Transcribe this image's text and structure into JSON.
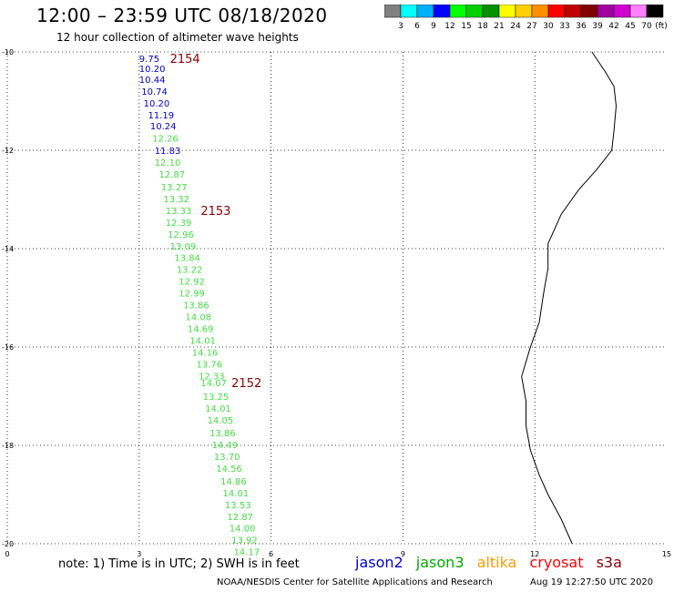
{
  "header": {
    "title": "12:00 – 23:59 UTC 08/18/2020",
    "subtitle": "12 hour collection of altimeter wave heights"
  },
  "colorbar": {
    "swatches": [
      "#808080",
      "#00ffff",
      "#00b0ff",
      "#0000ff",
      "#00ff00",
      "#00d000",
      "#009000",
      "#ffff00",
      "#ffd000",
      "#ff9000",
      "#ff0000",
      "#c00000",
      "#800000",
      "#a000a0",
      "#d000d0",
      "#ff80ff",
      "#000000"
    ],
    "labels": [
      "3",
      "6",
      "9",
      "12",
      "15",
      "18",
      "21",
      "24",
      "27",
      "30",
      "33",
      "36",
      "39",
      "42",
      "45",
      "70"
    ],
    "unit": "(ft)"
  },
  "chart_data": {
    "type": "scatter",
    "xlim": [
      0,
      15
    ],
    "ylim": [
      -20,
      -10
    ],
    "xticks": [
      0,
      3,
      6,
      9,
      12,
      15
    ],
    "yticks": [
      -10,
      -12,
      -14,
      -16,
      -18,
      -20
    ],
    "grid": true,
    "series": [
      {
        "name": "jason2",
        "color": "#0000cc",
        "points": [
          {
            "x": 3.0,
            "y": -10.13,
            "label": "9.75"
          },
          {
            "x": 3.0,
            "y": -10.33,
            "label": "10.20"
          },
          {
            "x": 3.0,
            "y": -10.56,
            "label": "10.44"
          },
          {
            "x": 3.05,
            "y": -10.8,
            "label": "10.74"
          },
          {
            "x": 3.1,
            "y": -11.04,
            "label": "10.20"
          },
          {
            "x": 3.2,
            "y": -11.28,
            "label": "11.19"
          },
          {
            "x": 3.25,
            "y": -11.5,
            "label": "10.24"
          },
          {
            "x": 3.35,
            "y": -12.0,
            "label": "11.83"
          }
        ]
      },
      {
        "name": "jason3",
        "color": "#44dd44",
        "points": [
          {
            "x": 3.3,
            "y": -11.75,
            "label": "12.26"
          },
          {
            "x": 3.35,
            "y": -12.24,
            "label": "12.10"
          },
          {
            "x": 3.45,
            "y": -12.48,
            "label": "12.87"
          },
          {
            "x": 3.5,
            "y": -12.74,
            "label": "13.27"
          },
          {
            "x": 3.55,
            "y": -12.98,
            "label": "13.32"
          },
          {
            "x": 3.6,
            "y": -13.22,
            "label": "13.33"
          },
          {
            "x": 3.6,
            "y": -13.46,
            "label": "12.39"
          },
          {
            "x": 3.65,
            "y": -13.7,
            "label": "12.96"
          },
          {
            "x": 3.7,
            "y": -13.94,
            "label": "13.09"
          },
          {
            "x": 3.8,
            "y": -14.18,
            "label": "13.84"
          },
          {
            "x": 3.85,
            "y": -14.42,
            "label": "13.22"
          },
          {
            "x": 3.9,
            "y": -14.66,
            "label": "12.92"
          },
          {
            "x": 3.9,
            "y": -14.9,
            "label": "12.99"
          },
          {
            "x": 4.0,
            "y": -15.14,
            "label": "13.86"
          },
          {
            "x": 4.05,
            "y": -15.38,
            "label": "14.08"
          },
          {
            "x": 4.1,
            "y": -15.62,
            "label": "14.69"
          },
          {
            "x": 4.15,
            "y": -15.86,
            "label": "14.01"
          },
          {
            "x": 4.2,
            "y": -16.1,
            "label": "14.16"
          },
          {
            "x": 4.3,
            "y": -16.34,
            "label": "13.76"
          },
          {
            "x": 4.35,
            "y": -16.58,
            "label": "12.33"
          },
          {
            "x": 4.4,
            "y": -16.72,
            "label": "14.07"
          },
          {
            "x": 4.45,
            "y": -17.0,
            "label": "13.25"
          },
          {
            "x": 4.5,
            "y": -17.24,
            "label": "14.01"
          },
          {
            "x": 4.55,
            "y": -17.48,
            "label": "14.05"
          },
          {
            "x": 4.6,
            "y": -17.74,
            "label": "13.86"
          },
          {
            "x": 4.65,
            "y": -17.98,
            "label": "14.49"
          },
          {
            "x": 4.7,
            "y": -18.22,
            "label": "13.70"
          },
          {
            "x": 4.75,
            "y": -18.46,
            "label": "14.56"
          },
          {
            "x": 4.85,
            "y": -18.72,
            "label": "14.86"
          },
          {
            "x": 4.9,
            "y": -18.96,
            "label": "14.01"
          },
          {
            "x": 4.95,
            "y": -19.2,
            "label": "13.53"
          },
          {
            "x": 5.0,
            "y": -19.44,
            "label": "12.87"
          },
          {
            "x": 5.05,
            "y": -19.68,
            "label": "14.00"
          },
          {
            "x": 5.1,
            "y": -19.92,
            "label": "13.92"
          },
          {
            "x": 5.15,
            "y": -20.16,
            "label": "14.17"
          }
        ]
      }
    ],
    "annotations": [
      {
        "text": "2154",
        "x": 3.7,
        "y": -10.13,
        "color": "#8b0000"
      },
      {
        "text": "2153",
        "x": 4.4,
        "y": -13.22,
        "color": "#8b0000"
      },
      {
        "text": "2152",
        "x": 5.1,
        "y": -16.72,
        "color": "#8b0000"
      }
    ],
    "coastline": {
      "color": "#000000",
      "points": [
        [
          13.3,
          -10.0
        ],
        [
          13.6,
          -10.4
        ],
        [
          13.8,
          -10.7
        ],
        [
          13.85,
          -11.1
        ],
        [
          13.8,
          -11.6
        ],
        [
          13.75,
          -12.0
        ],
        [
          13.4,
          -12.4
        ],
        [
          13.0,
          -12.8
        ],
        [
          12.6,
          -13.3
        ],
        [
          12.3,
          -13.9
        ],
        [
          12.3,
          -14.4
        ],
        [
          12.2,
          -14.9
        ],
        [
          12.1,
          -15.5
        ],
        [
          11.9,
          -16.0
        ],
        [
          11.8,
          -16.3
        ],
        [
          11.7,
          -16.6
        ],
        [
          11.8,
          -17.1
        ],
        [
          11.8,
          -17.6
        ],
        [
          11.9,
          -18.1
        ],
        [
          12.1,
          -18.6
        ],
        [
          12.3,
          -19.0
        ],
        [
          12.6,
          -19.5
        ],
        [
          12.85,
          -20.0
        ]
      ]
    }
  },
  "footer": {
    "note": "note: 1) Time is in UTC; 2) SWH is in feet",
    "satellites": [
      {
        "name": "jason2",
        "color": "#0000cc"
      },
      {
        "name": "jason3",
        "color": "#00aa00"
      },
      {
        "name": "altika",
        "color": "#ff9900"
      },
      {
        "name": "cryosat",
        "color": "#ff0000"
      },
      {
        "name": "s3a",
        "color": "#8b0000"
      }
    ],
    "credit": "NOAA/NESDIS Center for Satellite Applications and Research",
    "timestamp": "Aug 19 12:27:50 UTC 2020"
  }
}
